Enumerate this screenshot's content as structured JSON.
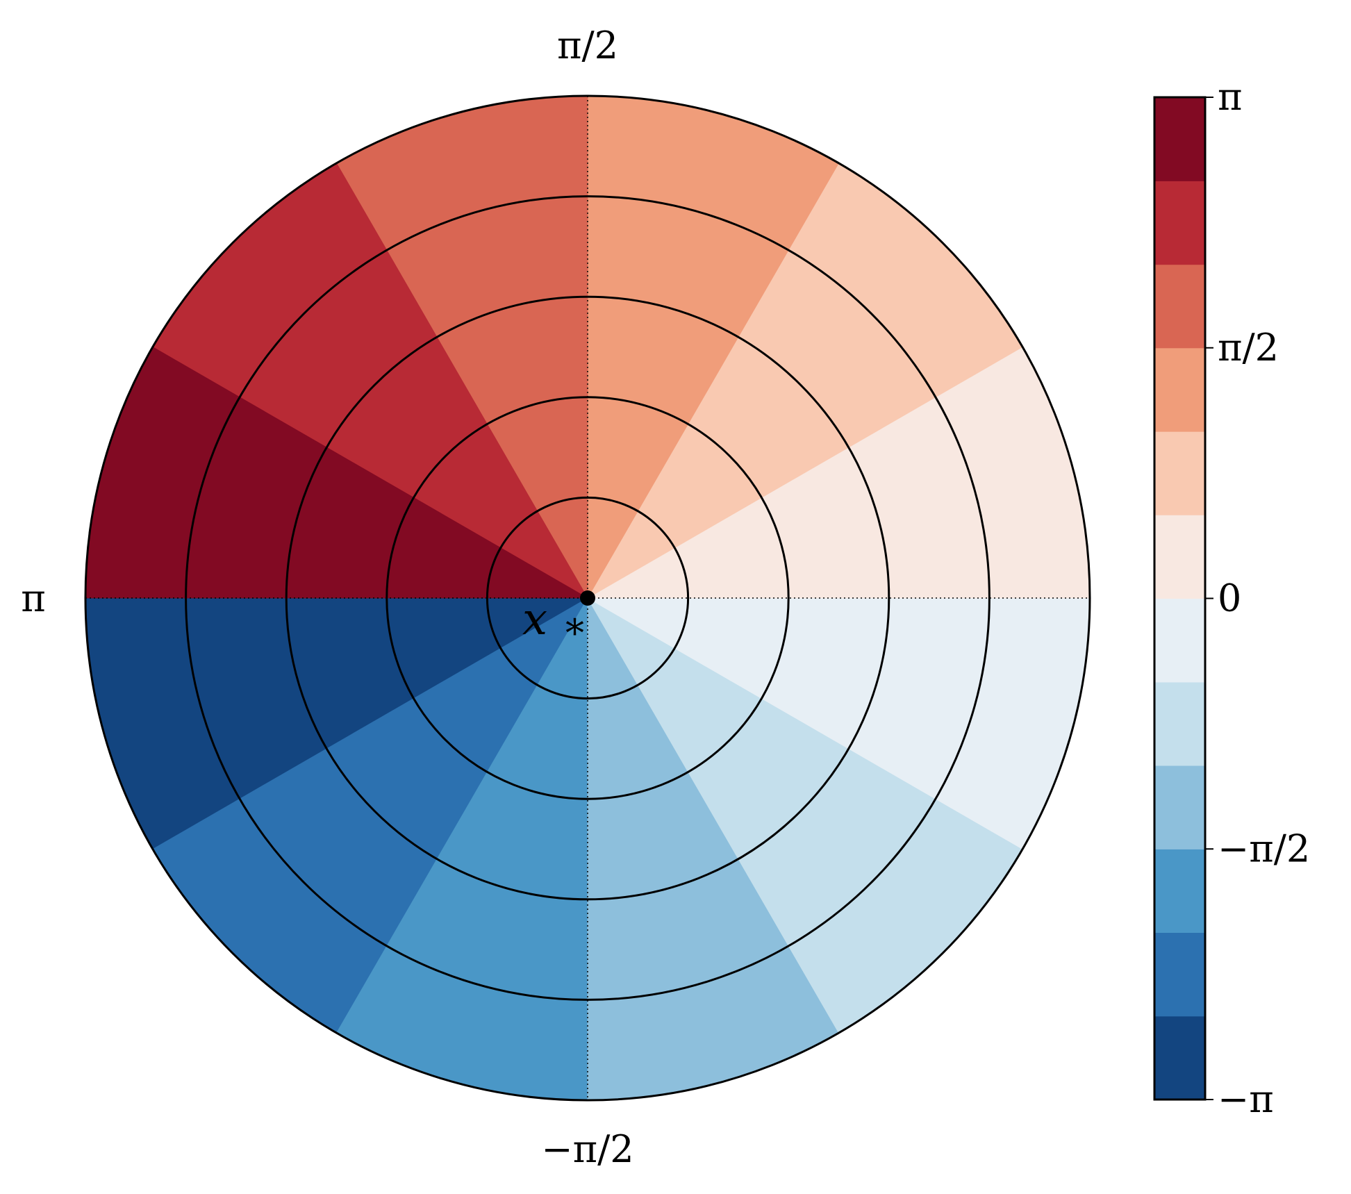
{
  "chart_data": {
    "type": "heatmap",
    "subtype": "polar-angle-colormap",
    "theta_range": [
      -3.14159,
      3.14159
    ],
    "n_sectors": 12,
    "n_rings": 5,
    "sector_values": [
      -2.88,
      -2.36,
      -1.83,
      -1.31,
      -0.79,
      -0.26,
      0.26,
      0.79,
      1.31,
      1.83,
      2.36,
      2.88
    ],
    "colorbar_levels": [
      -3.14159,
      -2.618,
      -2.094,
      -1.571,
      -1.047,
      -0.524,
      0,
      0.524,
      1.047,
      1.571,
      2.094,
      2.618,
      3.14159
    ],
    "colorbar_colors": [
      "#134580",
      "#2c71b0",
      "#4a97c7",
      "#8dbfdc",
      "#c4dfec",
      "#e7eff5",
      "#f8e8e1",
      "#f9c9b1",
      "#f09d7a",
      "#d96653",
      "#b82a35",
      "#820a23"
    ],
    "colorbar_ticks": [
      {
        "value": 3.14159,
        "label": "π"
      },
      {
        "value": 1.5708,
        "label": "π/2"
      },
      {
        "value": 0,
        "label": "0"
      },
      {
        "value": -1.5708,
        "label": "−π/2"
      },
      {
        "value": -3.14159,
        "label": "−π"
      }
    ],
    "angle_labels": {
      "top": "π/2",
      "left": "π",
      "bottom": "−π/2"
    },
    "center_label": {
      "main": "x",
      "sub": "*"
    },
    "grid": true,
    "legend": "colorbar-right"
  }
}
